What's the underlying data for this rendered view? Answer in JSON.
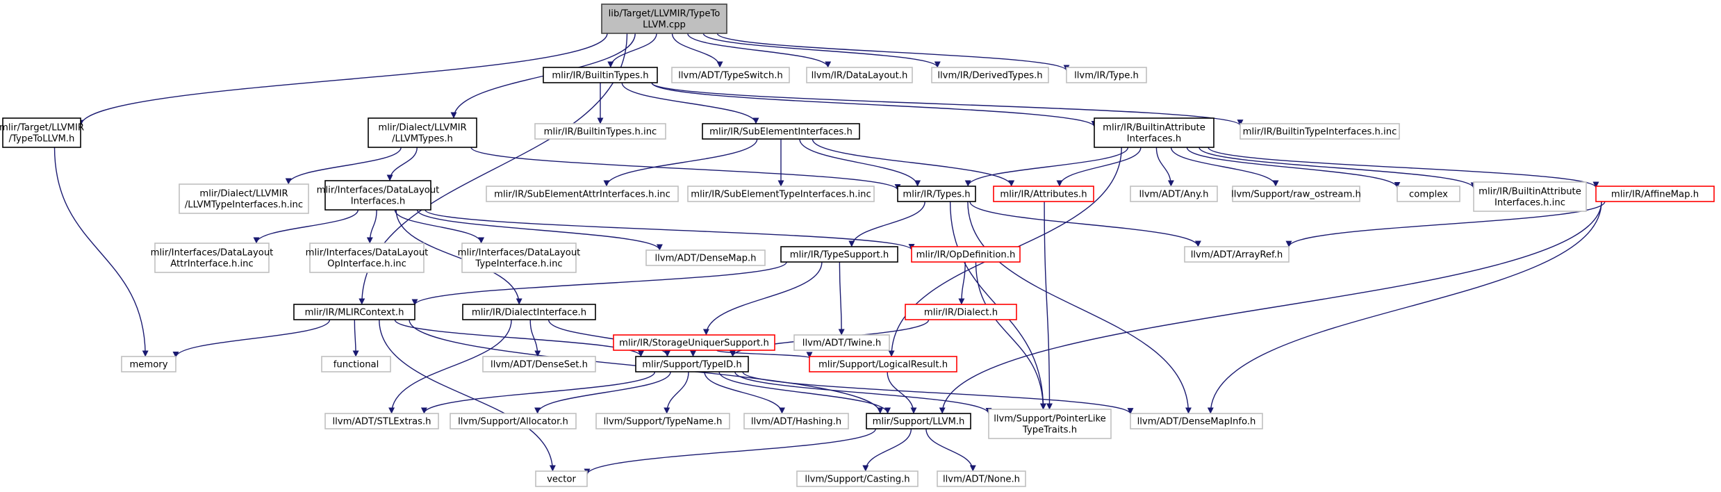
{
  "colors": {
    "root_fill": "#bfbfbf",
    "root_border": "#404040",
    "documented_border": "#000000",
    "has_more_border": "#ff0000",
    "external_border": "#bfbfbf",
    "edge": "#191970"
  },
  "nodes": [
    {
      "id": "root",
      "kind": "root",
      "lines": [
        "lib/Target/LLVMIR/TypeTo",
        "LLVM.cpp"
      ]
    },
    {
      "id": "target_typetollvm",
      "kind": "documented",
      "lines": [
        "mlir/Target/LLVMIR",
        "/TypeToLLVM.h"
      ]
    },
    {
      "id": "llvmtypes",
      "kind": "documented",
      "lines": [
        "mlir/Dialect/LLVMIR",
        "/LLVMTypes.h"
      ]
    },
    {
      "id": "builtintypes",
      "kind": "documented",
      "lines": [
        "mlir/IR/BuiltinTypes.h"
      ]
    },
    {
      "id": "typeswitch",
      "kind": "external",
      "lines": [
        "llvm/ADT/TypeSwitch.h"
      ]
    },
    {
      "id": "datalayout",
      "kind": "external",
      "lines": [
        "llvm/IR/DataLayout.h"
      ]
    },
    {
      "id": "derivedtypes",
      "kind": "external",
      "lines": [
        "llvm/IR/DerivedTypes.h"
      ]
    },
    {
      "id": "irtype",
      "kind": "external",
      "lines": [
        "llvm/IR/Type.h"
      ]
    },
    {
      "id": "builtintypes_inc",
      "kind": "external",
      "lines": [
        "mlir/IR/BuiltinTypes.h.inc"
      ]
    },
    {
      "id": "subelementinterfaces",
      "kind": "documented",
      "lines": [
        "mlir/IR/SubElementInterfaces.h"
      ]
    },
    {
      "id": "builtinattrinterfaces",
      "kind": "documented",
      "lines": [
        "mlir/IR/BuiltinAttribute",
        "Interfaces.h"
      ]
    },
    {
      "id": "builtintypeinterfaces_inc",
      "kind": "external",
      "lines": [
        "mlir/IR/BuiltinTypeInterfaces.h.inc"
      ]
    },
    {
      "id": "llvmtypeinterfaces_inc",
      "kind": "external",
      "lines": [
        "mlir/Dialect/LLVMIR",
        "/LLVMTypeInterfaces.h.inc"
      ]
    },
    {
      "id": "datalayoutinterfaces",
      "kind": "documented",
      "lines": [
        "mlir/Interfaces/DataLayout",
        "Interfaces.h"
      ]
    },
    {
      "id": "subelemattr_inc",
      "kind": "external",
      "lines": [
        "mlir/IR/SubElementAttrInterfaces.h.inc"
      ]
    },
    {
      "id": "subelemtype_inc",
      "kind": "external",
      "lines": [
        "mlir/IR/SubElementTypeInterfaces.h.inc"
      ]
    },
    {
      "id": "irtypes",
      "kind": "documented",
      "lines": [
        "mlir/IR/Types.h"
      ]
    },
    {
      "id": "attributes",
      "kind": "has-more",
      "lines": [
        "mlir/IR/Attributes.h"
      ]
    },
    {
      "id": "adt_any",
      "kind": "external",
      "lines": [
        "llvm/ADT/Any.h"
      ]
    },
    {
      "id": "raw_ostream",
      "kind": "external",
      "lines": [
        "llvm/Support/raw_ostream.h"
      ]
    },
    {
      "id": "complex",
      "kind": "external",
      "lines": [
        "complex"
      ]
    },
    {
      "id": "builtinattrinterfaces_inc",
      "kind": "external",
      "lines": [
        "mlir/IR/BuiltinAttribute",
        "Interfaces.h.inc"
      ]
    },
    {
      "id": "affinemap",
      "kind": "has-more",
      "lines": [
        "mlir/IR/AffineMap.h"
      ]
    },
    {
      "id": "dl_attr_inc",
      "kind": "external",
      "lines": [
        "mlir/Interfaces/DataLayout",
        "AttrInterface.h.inc"
      ]
    },
    {
      "id": "dl_op_inc",
      "kind": "external",
      "lines": [
        "mlir/Interfaces/DataLayout",
        "OpInterface.h.inc"
      ]
    },
    {
      "id": "dl_type_inc",
      "kind": "external",
      "lines": [
        "mlir/Interfaces/DataLayout",
        "TypeInterface.h.inc"
      ]
    },
    {
      "id": "densemap",
      "kind": "external",
      "lines": [
        "llvm/ADT/DenseMap.h"
      ]
    },
    {
      "id": "opdefinition",
      "kind": "has-more",
      "lines": [
        "mlir/IR/OpDefinition.h"
      ]
    },
    {
      "id": "typesupport",
      "kind": "documented",
      "lines": [
        "mlir/IR/TypeSupport.h"
      ]
    },
    {
      "id": "arrayref",
      "kind": "external",
      "lines": [
        "llvm/ADT/ArrayRef.h"
      ]
    },
    {
      "id": "mlircontext",
      "kind": "documented",
      "lines": [
        "mlir/IR/MLIRContext.h"
      ]
    },
    {
      "id": "dialectinterface",
      "kind": "documented",
      "lines": [
        "mlir/IR/DialectInterface.h"
      ]
    },
    {
      "id": "storageuniquer",
      "kind": "has-more",
      "lines": [
        "mlir/IR/StorageUniquerSupport.h"
      ]
    },
    {
      "id": "twine",
      "kind": "external",
      "lines": [
        "llvm/ADT/Twine.h"
      ]
    },
    {
      "id": "irdialect",
      "kind": "has-more",
      "lines": [
        "mlir/IR/Dialect.h"
      ]
    },
    {
      "id": "memory",
      "kind": "external",
      "lines": [
        "memory"
      ]
    },
    {
      "id": "functional",
      "kind": "external",
      "lines": [
        "functional"
      ]
    },
    {
      "id": "denseset",
      "kind": "external",
      "lines": [
        "llvm/ADT/DenseSet.h"
      ]
    },
    {
      "id": "typeid",
      "kind": "documented",
      "lines": [
        "mlir/Support/TypeID.h"
      ]
    },
    {
      "id": "logicalresult",
      "kind": "has-more",
      "lines": [
        "mlir/Support/LogicalResult.h"
      ]
    },
    {
      "id": "stlextras",
      "kind": "external",
      "lines": [
        "llvm/ADT/STLExtras.h"
      ]
    },
    {
      "id": "allocator",
      "kind": "external",
      "lines": [
        "llvm/Support/Allocator.h"
      ]
    },
    {
      "id": "typename",
      "kind": "external",
      "lines": [
        "llvm/Support/TypeName.h"
      ]
    },
    {
      "id": "hashing",
      "kind": "external",
      "lines": [
        "llvm/ADT/Hashing.h"
      ]
    },
    {
      "id": "supportllvm",
      "kind": "documented",
      "lines": [
        "mlir/Support/LLVM.h"
      ]
    },
    {
      "id": "pointerlike",
      "kind": "external",
      "lines": [
        "llvm/Support/PointerLike",
        "TypeTraits.h"
      ]
    },
    {
      "id": "densemapinfo",
      "kind": "external",
      "lines": [
        "llvm/ADT/DenseMapInfo.h"
      ]
    },
    {
      "id": "vector",
      "kind": "external",
      "lines": [
        "vector"
      ]
    },
    {
      "id": "casting",
      "kind": "external",
      "lines": [
        "llvm/Support/Casting.h"
      ]
    },
    {
      "id": "adtnone",
      "kind": "external",
      "lines": [
        "llvm/ADT/None.h"
      ]
    }
  ],
  "edges": [
    [
      "root",
      "target_typetollvm"
    ],
    [
      "root",
      "llvmtypes"
    ],
    [
      "root",
      "builtintypes"
    ],
    [
      "root",
      "typeswitch"
    ],
    [
      "root",
      "datalayout"
    ],
    [
      "root",
      "derivedtypes"
    ],
    [
      "root",
      "irtype"
    ],
    [
      "root",
      "mlircontext"
    ],
    [
      "target_typetollvm",
      "memory"
    ],
    [
      "llvmtypes",
      "llvmtypeinterfaces_inc"
    ],
    [
      "llvmtypes",
      "datalayoutinterfaces"
    ],
    [
      "llvmtypes",
      "irtypes"
    ],
    [
      "builtintypes",
      "builtintypes_inc"
    ],
    [
      "builtintypes",
      "subelementinterfaces"
    ],
    [
      "builtintypes",
      "builtinattrinterfaces"
    ],
    [
      "builtintypes",
      "builtintypeinterfaces_inc"
    ],
    [
      "subelementinterfaces",
      "subelemattr_inc"
    ],
    [
      "subelementinterfaces",
      "subelemtype_inc"
    ],
    [
      "subelementinterfaces",
      "irtypes"
    ],
    [
      "subelementinterfaces",
      "attributes"
    ],
    [
      "builtinattrinterfaces",
      "irtypes"
    ],
    [
      "builtinattrinterfaces",
      "attributes"
    ],
    [
      "builtinattrinterfaces",
      "adt_any"
    ],
    [
      "builtinattrinterfaces",
      "raw_ostream"
    ],
    [
      "builtinattrinterfaces",
      "complex"
    ],
    [
      "builtinattrinterfaces",
      "builtinattrinterfaces_inc"
    ],
    [
      "builtinattrinterfaces",
      "affinemap"
    ],
    [
      "builtinattrinterfaces",
      "logicalresult"
    ],
    [
      "datalayoutinterfaces",
      "dl_attr_inc"
    ],
    [
      "datalayoutinterfaces",
      "dl_op_inc"
    ],
    [
      "datalayoutinterfaces",
      "dl_type_inc"
    ],
    [
      "datalayoutinterfaces",
      "densemap"
    ],
    [
      "datalayoutinterfaces",
      "opdefinition"
    ],
    [
      "datalayoutinterfaces",
      "dialectinterface"
    ],
    [
      "irtypes",
      "typesupport"
    ],
    [
      "irtypes",
      "arrayref"
    ],
    [
      "irtypes",
      "pointerlike"
    ],
    [
      "irtypes",
      "densemapinfo"
    ],
    [
      "attributes",
      "pointerlike"
    ],
    [
      "affinemap",
      "arrayref"
    ],
    [
      "affinemap",
      "supportllvm"
    ],
    [
      "affinemap",
      "densemapinfo"
    ],
    [
      "typesupport",
      "mlircontext"
    ],
    [
      "typesupport",
      "storageuniquer"
    ],
    [
      "typesupport",
      "twine"
    ],
    [
      "opdefinition",
      "irdialect"
    ],
    [
      "opdefinition",
      "pointerlike"
    ],
    [
      "mlircontext",
      "memory"
    ],
    [
      "mlircontext",
      "functional"
    ],
    [
      "mlircontext",
      "typeid"
    ],
    [
      "mlircontext",
      "supportllvm"
    ],
    [
      "mlircontext",
      "vector"
    ],
    [
      "dialectinterface",
      "denseset"
    ],
    [
      "dialectinterface",
      "typeid"
    ],
    [
      "dialectinterface",
      "stlextras"
    ],
    [
      "storageuniquer",
      "typeid"
    ],
    [
      "storageuniquer",
      "logicalresult"
    ],
    [
      "irdialect",
      "typeid"
    ],
    [
      "logicalresult",
      "supportllvm"
    ],
    [
      "typeid",
      "stlextras"
    ],
    [
      "typeid",
      "allocator"
    ],
    [
      "typeid",
      "typename"
    ],
    [
      "typeid",
      "hashing"
    ],
    [
      "typeid",
      "supportllvm"
    ],
    [
      "typeid",
      "pointerlike"
    ],
    [
      "typeid",
      "densemapinfo"
    ],
    [
      "supportllvm",
      "vector"
    ],
    [
      "supportllvm",
      "casting"
    ],
    [
      "supportllvm",
      "adtnone"
    ]
  ]
}
